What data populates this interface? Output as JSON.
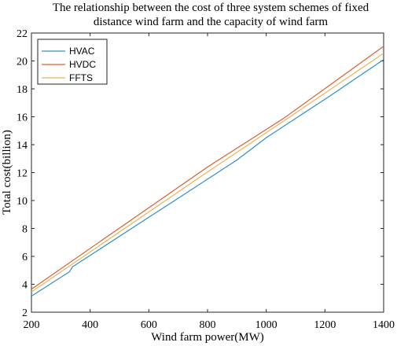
{
  "chart_data": {
    "type": "line",
    "title_line1": "The relationship between the cost of three system schemes of fixed",
    "title_line2": "distance wind farm and the capacity of wind farm",
    "xlabel": "Wind farm power(MW)",
    "ylabel": "Total cost(billion)",
    "xlim": [
      200,
      1400
    ],
    "ylim": [
      2,
      22
    ],
    "xticks": [
      200,
      400,
      600,
      800,
      1000,
      1200,
      1400
    ],
    "yticks": [
      2,
      4,
      6,
      8,
      10,
      12,
      14,
      16,
      18,
      20,
      22
    ],
    "grid": false,
    "legend_position": "top-left",
    "series": [
      {
        "name": "HVAC",
        "color": "#2f8fc9",
        "points": [
          [
            200,
            3.15
          ],
          [
            330,
            4.9
          ],
          [
            340,
            5.25
          ],
          [
            600,
            8.8
          ],
          [
            670,
            9.75
          ],
          [
            900,
            12.9
          ],
          [
            1000,
            14.5
          ],
          [
            1210,
            17.4
          ],
          [
            1400,
            20.1
          ]
        ]
      },
      {
        "name": "HVDC",
        "color": "#d9602e",
        "points": [
          [
            200,
            3.65
          ],
          [
            800,
            12.4
          ],
          [
            1060,
            15.9
          ],
          [
            1400,
            21.05
          ]
        ]
      },
      {
        "name": "FFTS",
        "color": "#e6b55a",
        "points": [
          [
            200,
            3.45
          ],
          [
            800,
            12.05
          ],
          [
            1060,
            15.7
          ],
          [
            1400,
            20.55
          ]
        ]
      }
    ]
  }
}
